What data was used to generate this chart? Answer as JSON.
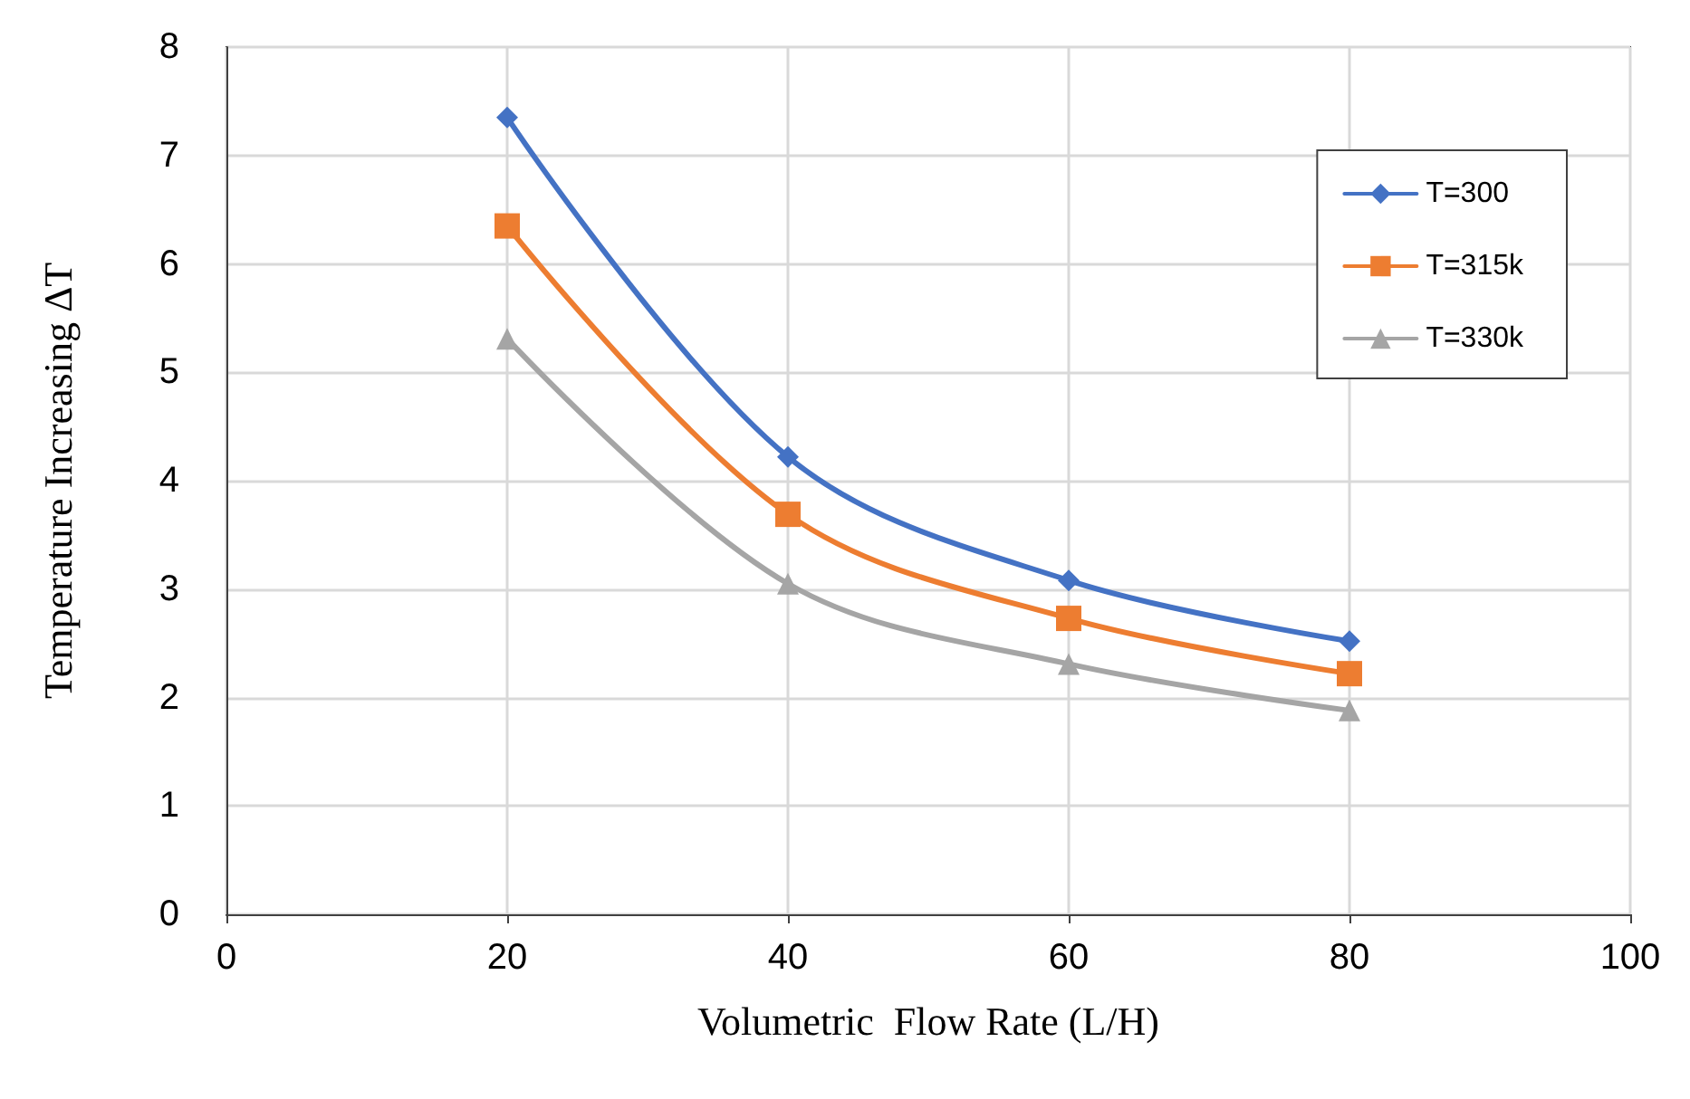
{
  "chart_data": {
    "type": "line",
    "xlabel": "Volumetric  Flow Rate (L/H)",
    "ylabel": "Temperature Increasing ΔT",
    "x": [
      20,
      40,
      60,
      80
    ],
    "series": [
      {
        "name": "T=300",
        "color": "#4472c4",
        "marker": "diamond",
        "values": [
          7.35,
          4.22,
          3.08,
          2.52
        ]
      },
      {
        "name": "T=315k",
        "color": "#ed7d31",
        "marker": "square",
        "values": [
          6.35,
          3.69,
          2.73,
          2.22
        ]
      },
      {
        "name": "T=330k",
        "color": "#a5a5a5",
        "marker": "triangle",
        "values": [
          5.31,
          3.05,
          2.31,
          1.88
        ]
      }
    ],
    "xlim": [
      0,
      100
    ],
    "xticks": [
      0,
      20,
      40,
      60,
      80,
      100
    ],
    "ylim": [
      0,
      8
    ],
    "yticks": [
      0,
      1,
      2,
      3,
      4,
      5,
      6,
      7,
      8
    ],
    "grid": true,
    "legend": "top right",
    "line_style": "solid"
  }
}
